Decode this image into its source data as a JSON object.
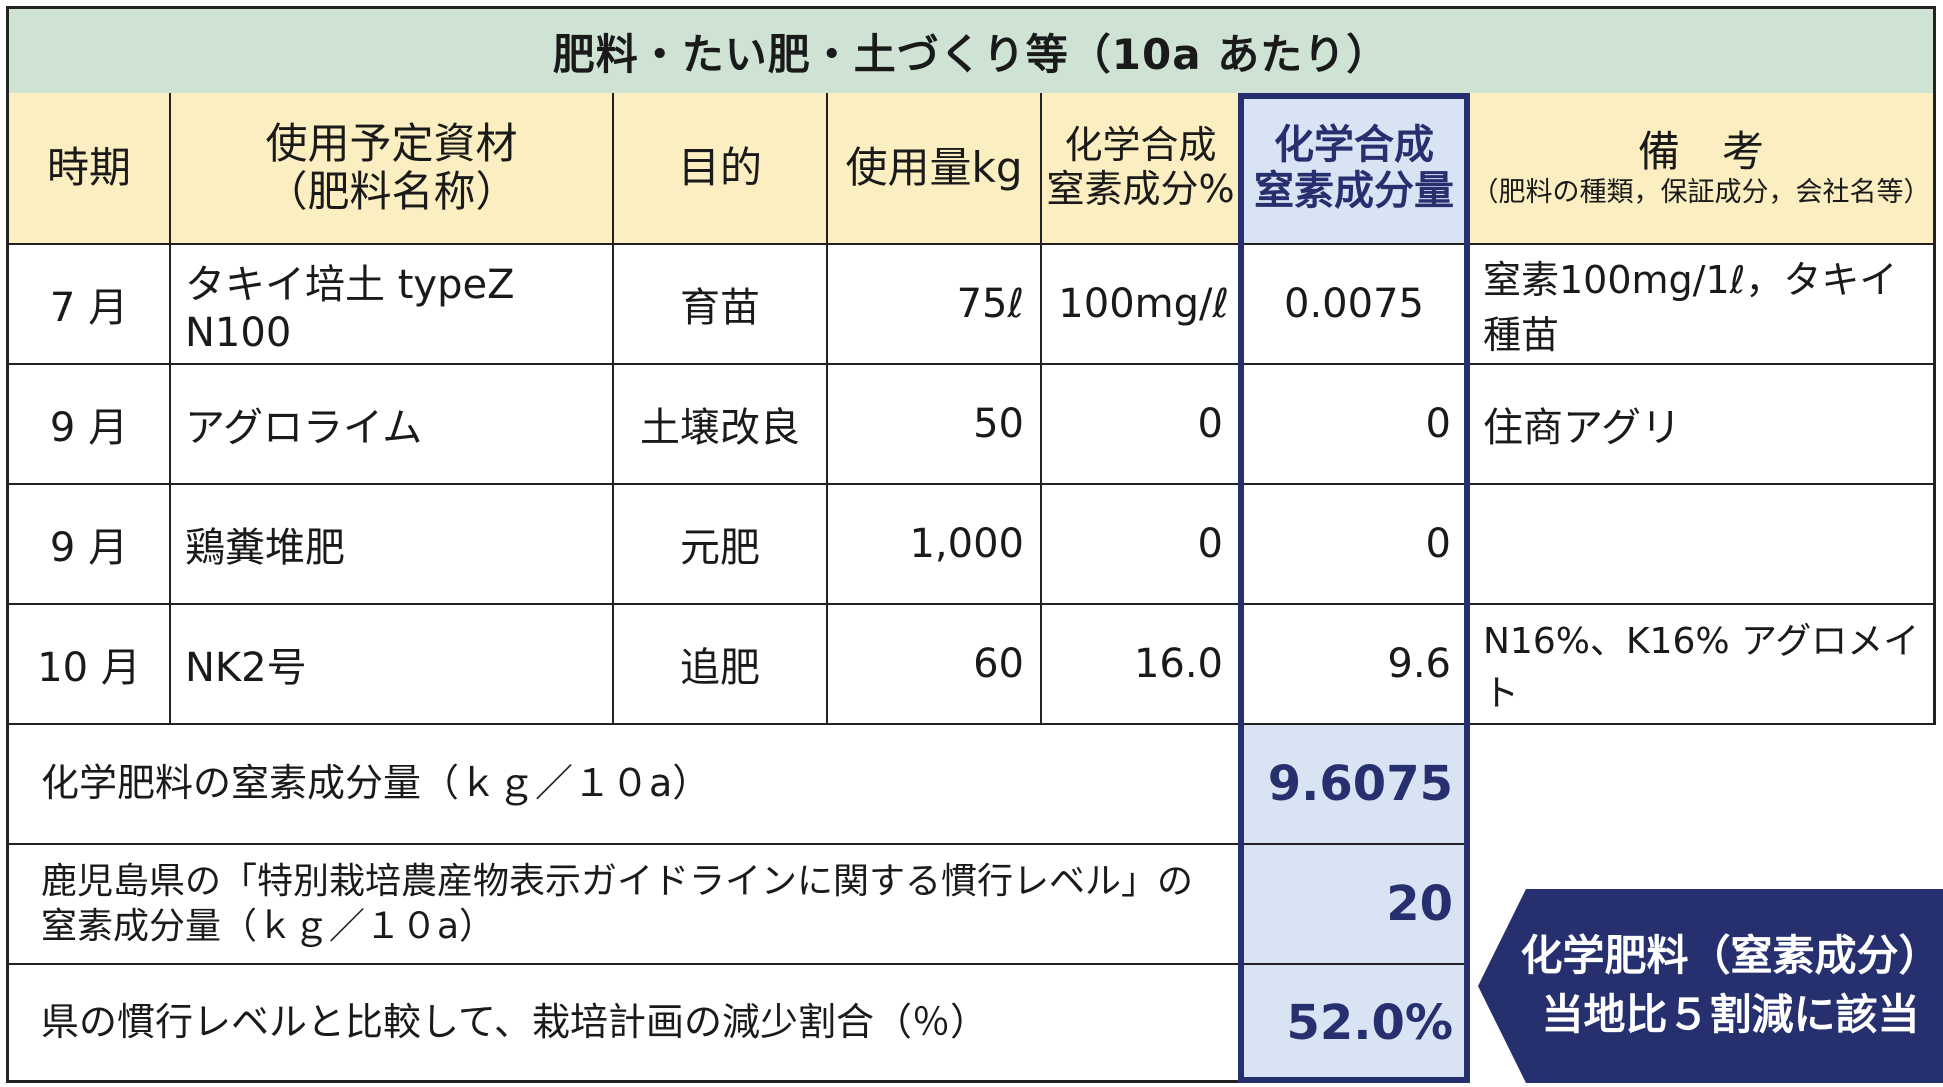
{
  "title": "肥料・たい肥・土づくり等（10a あたり）",
  "headers": {
    "period": "時期",
    "material_line1": "使用予定資材",
    "material_line2": "（肥料名称）",
    "purpose": "目的",
    "amount": "使用量kg",
    "n_pct_line1": "化学合成",
    "n_pct_line2": "窒素成分%",
    "n_amt_line1": "化学合成",
    "n_amt_line2": "窒素成分量",
    "remarks_line1": "備　考",
    "remarks_line2": "（肥料の種類，保証成分，会社名等）"
  },
  "rows": [
    {
      "period": "7 月",
      "material": "タキイ培土 typeZ N100",
      "purpose": "育苗",
      "amount": "75ℓ",
      "n_pct": "100mg/ℓ",
      "n_amt": "0.0075",
      "remarks": "窒素100mg/1ℓ，タキイ種苗"
    },
    {
      "period": "9 月",
      "material": "アグロライム",
      "purpose": "土壌改良",
      "amount": "50",
      "n_pct": "0",
      "n_amt": "0",
      "remarks": "住商アグリ"
    },
    {
      "period": "9 月",
      "material": "鶏糞堆肥",
      "purpose": "元肥",
      "amount": "1,000",
      "n_pct": "0",
      "n_amt": "0",
      "remarks": ""
    },
    {
      "period": "10 月",
      "material": "NK2号",
      "purpose": "追肥",
      "amount": "60",
      "n_pct": "16.0",
      "n_amt": "9.6",
      "remarks": "N16%、K16% アグロメイト"
    }
  ],
  "summary": [
    {
      "label": "化学肥料の窒素成分量（ｋｇ／１０a）",
      "value": "9.6075"
    },
    {
      "label_line1": "鹿児島県の「特別栽培農産物表示ガイドラインに関する慣行レベル」の",
      "label_line2": "窒素成分量（ｋｇ／１０a）",
      "value": "20"
    },
    {
      "label": "県の慣行レベルと比較して、栽培計画の減少割合（％）",
      "value": "52.0%"
    }
  ],
  "callout": {
    "line1": "化学肥料（窒素成分）",
    "line2": "当地比５割減に該当",
    "color": "#27306f"
  }
}
